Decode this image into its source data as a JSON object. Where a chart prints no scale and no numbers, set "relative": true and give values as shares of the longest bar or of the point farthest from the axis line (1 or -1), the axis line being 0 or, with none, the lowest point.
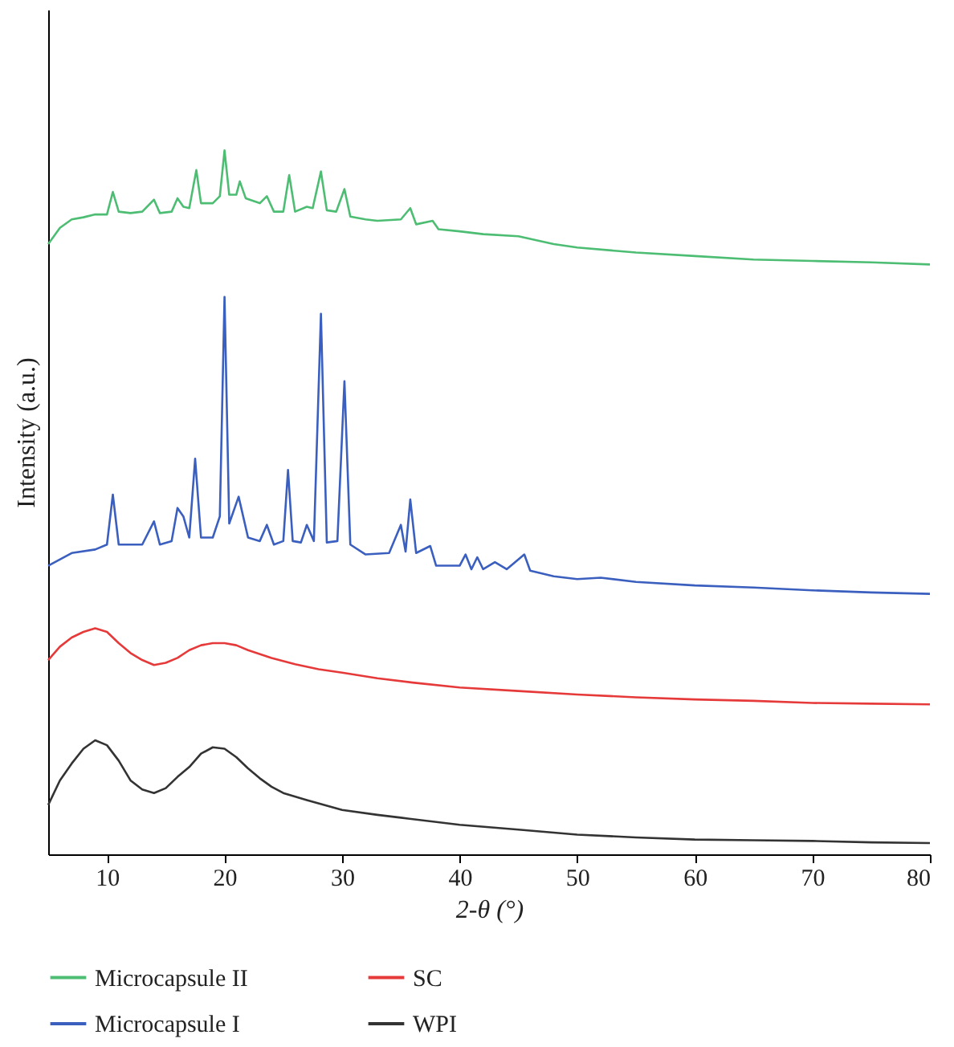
{
  "chart_data": {
    "type": "line",
    "xlabel": "2-θ (°)",
    "ylabel": "Intensity (a.u.)",
    "relative": true,
    "xlim": [
      5,
      80
    ],
    "xticks": [
      10,
      20,
      30,
      40,
      50,
      60,
      70,
      80
    ],
    "grid": false,
    "legend": "bottom",
    "marker": "none",
    "line_style": "solid",
    "series": [
      {
        "name": "Microcapsule II",
        "color": "#4cbd72",
        "x": [
          5,
          6,
          7,
          8,
          9,
          10,
          10.5,
          11,
          12,
          13,
          14,
          14.5,
          15.5,
          16,
          16.5,
          17,
          17.6,
          18,
          19,
          19.6,
          20,
          20.4,
          21,
          21.3,
          21.8,
          23,
          23.6,
          24.2,
          25,
          25.5,
          26,
          27,
          27.5,
          28.2,
          28.7,
          29.5,
          30.2,
          30.7,
          32,
          33,
          35,
          35.8,
          36.3,
          37.7,
          38.2,
          40,
          42,
          45,
          48,
          50,
          55,
          60,
          65,
          70,
          75,
          80
        ],
        "values": [
          0.867,
          0.89,
          0.902,
          0.905,
          0.909,
          0.909,
          0.941,
          0.913,
          0.911,
          0.913,
          0.93,
          0.911,
          0.913,
          0.932,
          0.92,
          0.918,
          0.972,
          0.925,
          0.925,
          0.935,
          1,
          0.937,
          0.937,
          0.956,
          0.932,
          0.925,
          0.935,
          0.913,
          0.913,
          0.965,
          0.913,
          0.92,
          0.918,
          0.97,
          0.915,
          0.913,
          0.945,
          0.906,
          0.902,
          0.9,
          0.902,
          0.918,
          0.895,
          0.9,
          0.888,
          0.885,
          0.881,
          0.878,
          0.867,
          0.862,
          0.855,
          0.85,
          0.845,
          0.843,
          0.841,
          0.838
        ]
      },
      {
        "name": "Microcapsule I",
        "color": "#3b5fbf",
        "x": [
          5,
          7,
          9,
          10,
          10.5,
          11,
          13,
          14,
          14.5,
          15.5,
          16,
          16.5,
          17,
          17.5,
          18,
          19,
          19.6,
          20,
          20.4,
          21.2,
          22,
          23,
          23.6,
          24.2,
          25,
          25.4,
          25.8,
          26.5,
          27,
          27.6,
          28.2,
          28.7,
          29.6,
          30.2,
          30.7,
          32,
          34,
          35,
          35.4,
          35.8,
          36.3,
          37.5,
          38,
          40,
          40.5,
          41,
          41.5,
          42,
          43,
          44,
          45.5,
          46,
          48,
          50,
          52,
          55,
          60,
          65,
          70,
          75,
          80
        ],
        "values": [
          0.41,
          0.428,
          0.433,
          0.44,
          0.511,
          0.44,
          0.44,
          0.473,
          0.44,
          0.445,
          0.492,
          0.48,
          0.45,
          0.562,
          0.45,
          0.45,
          0.48,
          0.792,
          0.47,
          0.508,
          0.45,
          0.445,
          0.468,
          0.44,
          0.445,
          0.546,
          0.445,
          0.443,
          0.468,
          0.445,
          0.768,
          0.443,
          0.445,
          0.672,
          0.44,
          0.426,
          0.428,
          0.468,
          0.43,
          0.504,
          0.428,
          0.438,
          0.41,
          0.41,
          0.426,
          0.405,
          0.422,
          0.405,
          0.415,
          0.405,
          0.426,
          0.403,
          0.395,
          0.391,
          0.393,
          0.387,
          0.382,
          0.379,
          0.375,
          0.372,
          0.37
        ]
      },
      {
        "name": "SC",
        "color": "#e63a3a",
        "x": [
          5,
          6,
          7,
          8,
          9,
          10,
          11,
          12,
          13,
          14,
          15,
          16,
          17,
          18,
          19,
          20,
          21,
          22,
          24,
          26,
          28,
          30,
          33,
          36,
          40,
          45,
          50,
          55,
          60,
          65,
          70,
          75,
          80
        ],
        "values": [
          0.276,
          0.295,
          0.308,
          0.316,
          0.321,
          0.316,
          0.3,
          0.286,
          0.276,
          0.269,
          0.272,
          0.279,
          0.29,
          0.297,
          0.3,
          0.3,
          0.297,
          0.29,
          0.279,
          0.27,
          0.263,
          0.258,
          0.25,
          0.244,
          0.237,
          0.232,
          0.227,
          0.223,
          0.22,
          0.218,
          0.215,
          0.214,
          0.213
        ]
      },
      {
        "name": "WPI",
        "color": "#333333",
        "x": [
          5,
          6,
          7,
          8,
          9,
          10,
          11,
          12,
          13,
          14,
          15,
          16,
          17,
          18,
          19,
          20,
          21,
          22,
          23,
          24,
          25,
          27,
          30,
          33,
          35,
          40,
          45,
          50,
          55,
          60,
          65,
          70,
          75,
          80
        ],
        "values": [
          0.07,
          0.105,
          0.129,
          0.15,
          0.162,
          0.155,
          0.133,
          0.105,
          0.092,
          0.087,
          0.094,
          0.11,
          0.124,
          0.143,
          0.152,
          0.15,
          0.138,
          0.122,
          0.108,
          0.096,
          0.087,
          0.077,
          0.063,
          0.056,
          0.052,
          0.042,
          0.035,
          0.028,
          0.024,
          0.021,
          0.02,
          0.019,
          0.017,
          0.016
        ]
      }
    ]
  }
}
